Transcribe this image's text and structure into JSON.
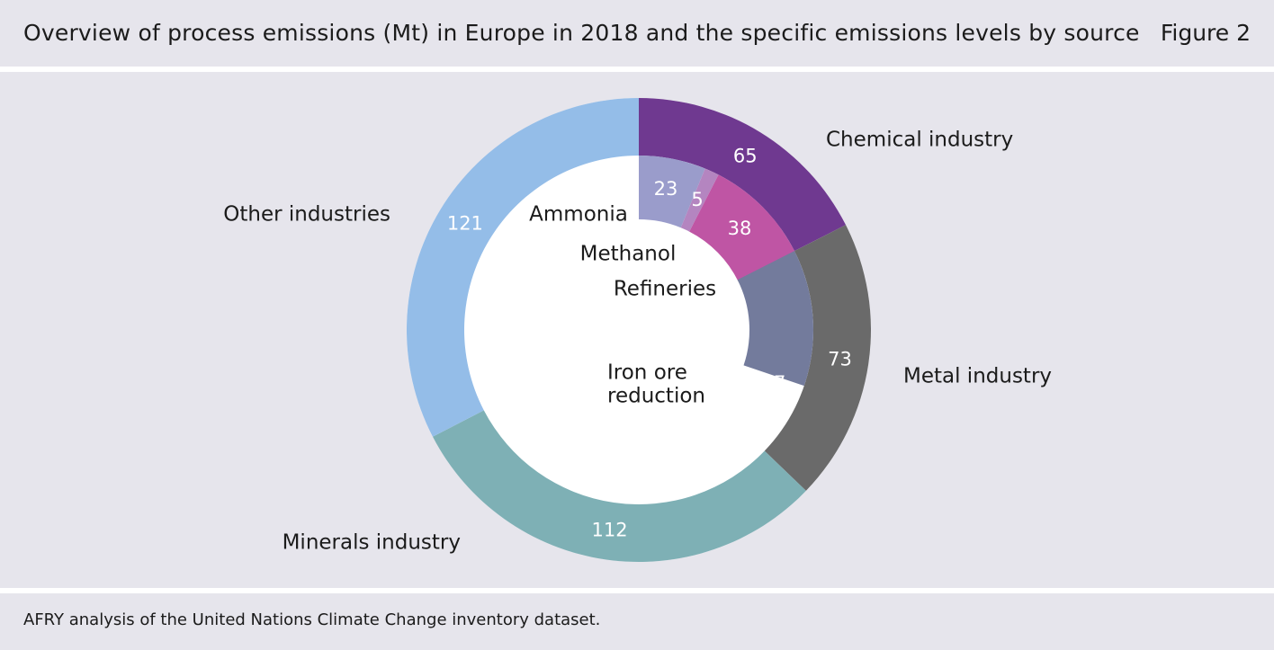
{
  "header": {
    "title": "Overview of process emissions (Mt) in Europe in 2018 and the specific emissions levels by source",
    "figure": "Figure 2"
  },
  "footer": {
    "source": "AFRY analysis of the United Nations Climate Change inventory dataset."
  },
  "chart_data": {
    "type": "pie",
    "subtype": "donut-with-inner-subcategories",
    "title": "Overview of process emissions (Mt) in Europe in 2018 and the specific emissions levels by source",
    "unit": "Mt",
    "outer_ring": [
      {
        "label": "Chemical industry",
        "value": 65,
        "color": "#6f3990"
      },
      {
        "label": "Metal industry",
        "value": 73,
        "color": "#6a6a6a"
      },
      {
        "label": "Minerals industry",
        "value": 112,
        "color": "#7eb0b5"
      },
      {
        "label": "Other industries",
        "value": 121,
        "color": "#94bde8"
      }
    ],
    "inner_segments": [
      {
        "label": "Ammonia",
        "value": 23,
        "color": "#9a9ccb",
        "value_label": "23"
      },
      {
        "label": "Methanol",
        "value": 5,
        "color": "#b485c0",
        "value_label": "5"
      },
      {
        "label": "Refineries",
        "value": 38,
        "color": "#bf55a4",
        "value_label": "38"
      },
      {
        "label": "Iron ore reduction",
        "label_lines": [
          "Iron ore",
          "reduction"
        ],
        "value": 47,
        "color": "#737b9c",
        "value_label": "47"
      }
    ]
  }
}
